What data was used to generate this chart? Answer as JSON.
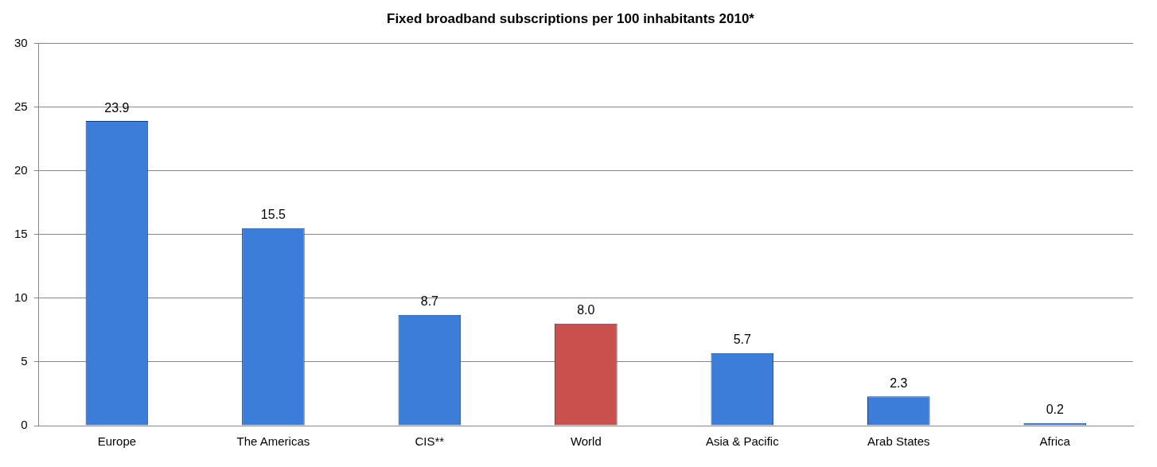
{
  "chart_data": {
    "type": "bar",
    "title": "Fixed broadband subscriptions per 100 inhabitants 2010*",
    "categories": [
      "Europe",
      "The Americas",
      "CIS**",
      "World",
      "Asia & Pacific",
      "Arab States",
      "Africa"
    ],
    "values": [
      23.9,
      15.5,
      8.7,
      8.0,
      5.7,
      2.3,
      0.2
    ],
    "colors": [
      "#3b7dd8",
      "#3b7dd8",
      "#3b7dd8",
      "#c9504c",
      "#3b7dd8",
      "#3b7dd8",
      "#3b7dd8"
    ],
    "value_labels": [
      "23.9",
      "15.5",
      "8.7",
      "8.0",
      "5.7",
      "2.3",
      "0.2"
    ],
    "ylim": [
      0,
      30
    ],
    "yticks": [
      0,
      5,
      10,
      15,
      20,
      25,
      30
    ],
    "grid": "y",
    "legend": false
  }
}
